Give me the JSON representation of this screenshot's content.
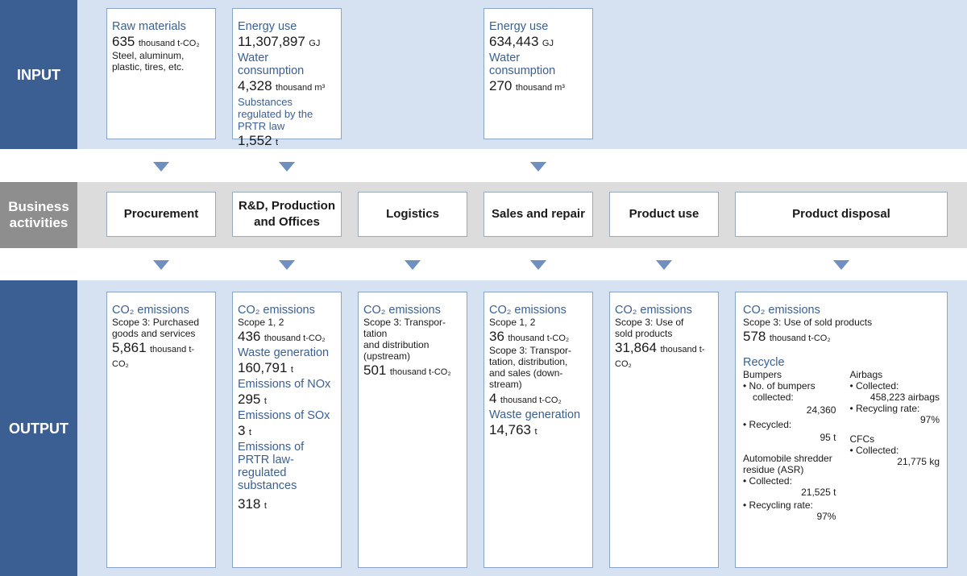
{
  "rows": {
    "input": "INPUT",
    "business_line1": "Business",
    "business_line2": "activities",
    "output": "OUTPUT"
  },
  "input": {
    "procurement": {
      "h1": "Raw materials",
      "v1": "635",
      "u1": "thousand t-CO₂",
      "d1": "Steel, aluminum, plastic, tires, etc."
    },
    "production": {
      "h1": "Energy use",
      "v1": "11,307,897",
      "u1": "GJ",
      "h2": "Water consumption",
      "v2": "4,328",
      "u2": "thousand m³",
      "h3": "Substances regulated by the PRTR law",
      "v3": "1,552",
      "u3": "t"
    },
    "sales": {
      "h1": "Energy use",
      "v1": "634,443",
      "u1": "GJ",
      "h2": "Water consumption",
      "v2": "270",
      "u2": "thousand m³"
    }
  },
  "business": {
    "procurement": "Procurement",
    "production_line1": "R&D, Production",
    "production_line2": "and Offices",
    "logistics": "Logistics",
    "sales": "Sales and repair",
    "use": "Product use",
    "disposal": "Product disposal"
  },
  "output": {
    "procurement": {
      "h1": "CO₂ emissions",
      "d1": "Scope 3: Purchased goods and services",
      "v1": "5,861",
      "u1": "thousand t-CO₂"
    },
    "production": {
      "h1": "CO₂ emissions",
      "d1": "Scope 1, 2",
      "v1": "436",
      "u1": "thousand t-CO₂",
      "h2": "Waste generation",
      "v2": "160,791",
      "u2": "t",
      "h3": "Emissions of NOx",
      "v3": "295",
      "u3": "t",
      "h4": "Emissions of SOx",
      "v4": "3",
      "u4": "t",
      "h5": "Emissions of PRTR law-regulated substances",
      "v5": "318",
      "u5": "t"
    },
    "logistics": {
      "h1": "CO₂ emissions",
      "d1": "Scope 3: Transpor-",
      "d2": "tation",
      "d3": "and distribution",
      "d4": "(upstream)",
      "v1": "501",
      "u1": "thousand t-CO₂"
    },
    "sales": {
      "h1": "CO₂ emissions",
      "d1": "Scope 1, 2",
      "v1": "36",
      "u1": "thousand t-CO₂",
      "d2": "Scope 3: Transpor-",
      "d3": "tation, distribution,",
      "d4": "and sales (down-",
      "d5": "stream)",
      "v2": "4",
      "u2": "thousand t-CO₂",
      "h2": "Waste generation",
      "v3": "14,763",
      "u3": "t"
    },
    "use": {
      "h1": "CO₂ emissions",
      "d1": "Scope 3: Use of sold products",
      "v1": "31,864",
      "u1": "thousand t-CO₂"
    },
    "disposal": {
      "h1": "CO₂ emissions",
      "d1": "Scope 3: Use of sold products",
      "v1": "578",
      "u1": "thousand t-CO₂",
      "h2": "Recycle",
      "bumpers": {
        "title": "Bumpers",
        "item1": "• No. of bumpers",
        "item1b": "collected:",
        "val1": "24,360",
        "item2": "• Recycled:",
        "val2": "95 t"
      },
      "asr": {
        "title1": "Automobile shredder",
        "title2": "residue (ASR)",
        "item1": "• Collected:",
        "val1": "21,525 t",
        "item2": "• Recycling rate:",
        "val2": "97%"
      },
      "airbags": {
        "title": "Airbags",
        "item1": "• Collected:",
        "val1": "458,223 airbags",
        "item2": "• Recycling rate:",
        "val2": "97%"
      },
      "cfcs": {
        "title": "CFCs",
        "item1": "• Collected:",
        "val1": "21,775 kg"
      }
    }
  },
  "colors": {
    "label_blue": "#3b5f93",
    "label_gray": "#8e8e8e",
    "band_blue": "#d6e2f2",
    "band_gray": "#dcdcdc",
    "arrow": "#6f8fc0",
    "heading_text": "#3b5f93"
  }
}
